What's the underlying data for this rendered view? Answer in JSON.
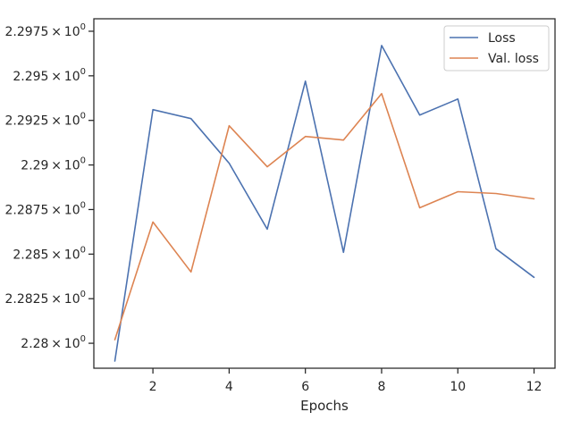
{
  "chart_data": {
    "type": "line",
    "title": "",
    "xlabel": "Epochs",
    "ylabel": "",
    "x": [
      1,
      2,
      3,
      4,
      5,
      6,
      7,
      8,
      9,
      10,
      11,
      12
    ],
    "xlim": [
      0.45,
      12.55
    ],
    "ylim": [
      2.2786,
      2.2982
    ],
    "xticks": [
      2,
      4,
      6,
      8,
      10,
      12
    ],
    "xtick_labels": [
      "2",
      "4",
      "6",
      "8",
      "10",
      "12"
    ],
    "yticks": [
      2.28,
      2.2825,
      2.285,
      2.2875,
      2.29,
      2.2925,
      2.295,
      2.2975
    ],
    "ytick_mantissas": [
      "2.28",
      "2.2825",
      "2.285",
      "2.2875",
      "2.29",
      "2.2925",
      "2.295",
      "2.2975"
    ],
    "ytick_times": "×",
    "ytick_base": "10",
    "ytick_exponent": "0",
    "grid": false,
    "legend_position": "top-right",
    "series": [
      {
        "name": "Loss",
        "color": "#4c72b0",
        "values": [
          2.279,
          2.2931,
          2.2926,
          2.2901,
          2.2864,
          2.2947,
          2.2851,
          2.2967,
          2.2928,
          2.2937,
          2.2853,
          2.2837
        ]
      },
      {
        "name": "Val. loss",
        "color": "#dd8452",
        "values": [
          2.2802,
          2.2868,
          2.284,
          2.2922,
          2.2899,
          2.2916,
          2.2914,
          2.294,
          2.2876,
          2.2885,
          2.2884,
          2.2881
        ]
      }
    ]
  }
}
